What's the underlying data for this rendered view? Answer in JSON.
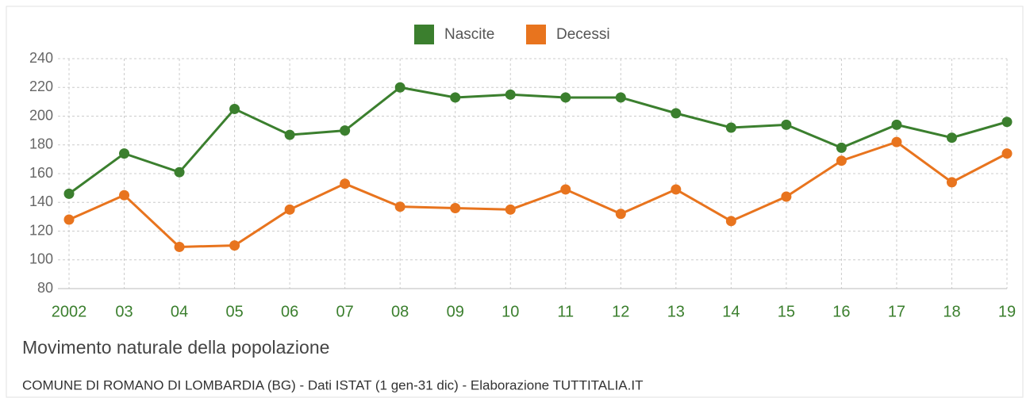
{
  "chart_data": {
    "type": "line",
    "title": "Movimento naturale della popolazione",
    "subtitle": "COMUNE DI ROMANO DI LOMBARDIA (BG) - Dati ISTAT (1 gen-31 dic) - Elaborazione TUTTITALIA.IT",
    "categories": [
      "2002",
      "03",
      "04",
      "05",
      "06",
      "07",
      "08",
      "09",
      "10",
      "11",
      "12",
      "13",
      "14",
      "15",
      "16",
      "17",
      "18",
      "19"
    ],
    "series": [
      {
        "name": "Nascite",
        "color": "#3b7f2e",
        "values": [
          146,
          174,
          161,
          205,
          187,
          190,
          220,
          213,
          215,
          213,
          213,
          202,
          192,
          194,
          178,
          194,
          185,
          196
        ]
      },
      {
        "name": "Decessi",
        "color": "#e8741e",
        "values": [
          128,
          145,
          109,
          110,
          135,
          153,
          137,
          136,
          135,
          149,
          132,
          149,
          127,
          144,
          169,
          182,
          154,
          174
        ]
      }
    ],
    "ylim": [
      80,
      240
    ],
    "yticks": [
      80,
      100,
      120,
      140,
      160,
      180,
      200,
      220,
      240
    ],
    "grid": true,
    "legend": "top"
  }
}
